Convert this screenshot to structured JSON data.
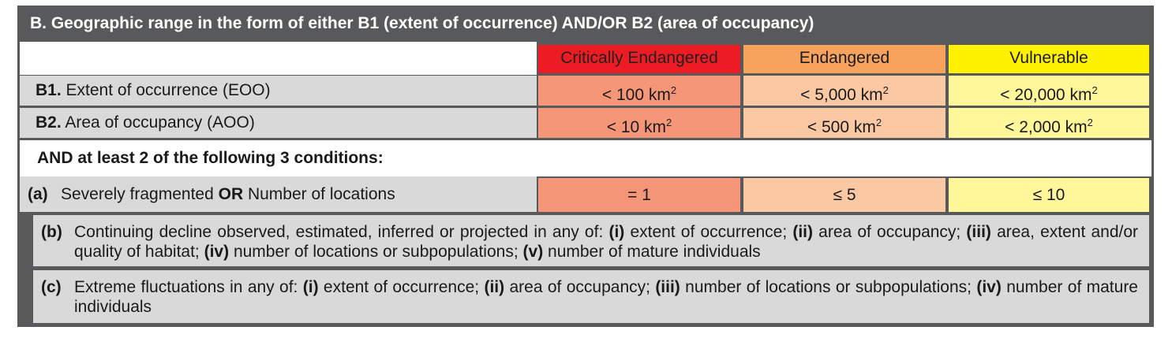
{
  "title": "B. Geographic range in the form of either B1 (extent of occurrence) AND/OR B2 (area of occupancy)",
  "columns": {
    "critically_endangered": "Critically Endangered",
    "endangered": "Endangered",
    "vulnerable": "Vulnerable"
  },
  "colors": {
    "frame": "#58595b",
    "critically_endangered_header": "#ed1c24",
    "endangered_header": "#f7a35c",
    "vulnerable_header": "#fff200",
    "critically_endangered_cell": "#f69679",
    "endangered_cell": "#fbc8a4",
    "vulnerable_cell": "#fff799",
    "row_grey": "#d9d9da"
  },
  "rows": [
    {
      "code": "B1.",
      "label": "Extent of occurrence (EOO)",
      "unit": "km",
      "sup": "2",
      "cr": "< 100",
      "en": "< 5,000",
      "vu": "< 20,000"
    },
    {
      "code": "B2.",
      "label": "Area of occupancy (AOO)",
      "unit": "km",
      "sup": "2",
      "cr": "< 10",
      "en": "< 500",
      "vu": "< 2,000"
    }
  ],
  "conditions_heading": "AND at least 2 of the following 3 conditions:",
  "condition_a": {
    "letter": "(a)",
    "text_1": "Severely fragmented ",
    "text_bold": "OR",
    "text_2": " Number of locations",
    "cr": "= 1",
    "en": "≤ 5",
    "vu": "≤ 10"
  },
  "condition_b": {
    "letter": "(b)",
    "t0": "Continuing decline observed, estimated, inferred or projected in any of: ",
    "b1": "(i)",
    "t1": " extent of occurrence; ",
    "b2": "(ii)",
    "t2": " area of occupancy; ",
    "b3": "(iii)",
    "t3": " area, extent and/or quality of habitat; ",
    "b4": "(iv)",
    "t4": " number of locations or subpopulations; ",
    "b5": "(v)",
    "t5": " number of mature individuals"
  },
  "condition_c": {
    "letter": "(c)",
    "t0": "Extreme fluctuations in any of: ",
    "b1": "(i)",
    "t1": " extent of occurrence; ",
    "b2": "(ii)",
    "t2": " area of occupancy; ",
    "b3": "(iii)",
    "t3": " number of locations or subpopulations; ",
    "b4": "(iv)",
    "t4": " number of mature individuals"
  }
}
